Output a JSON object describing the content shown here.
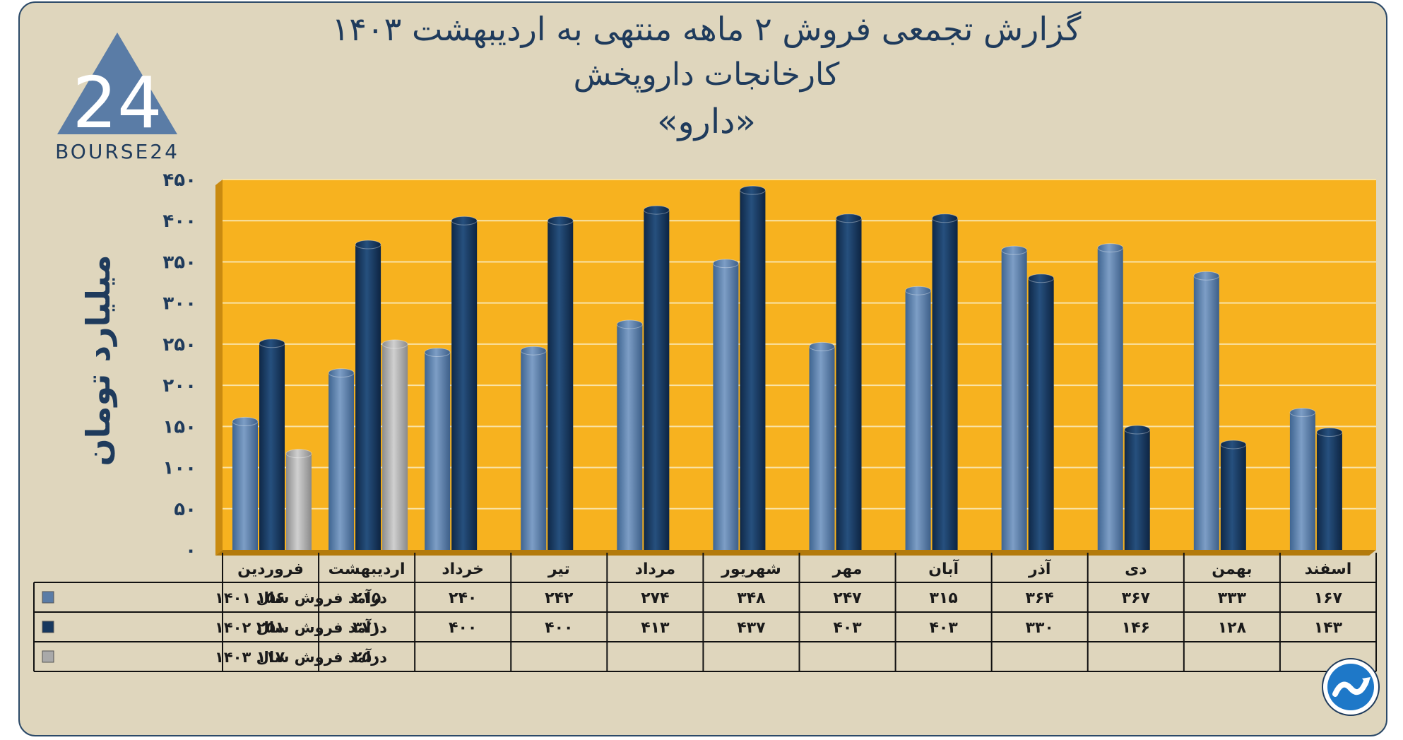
{
  "header": {
    "title_line1": "گزارش تجمعی فروش ۲ ماهه منتهی به اردیبهشت ۱۴۰۳",
    "title_line2": "کارخانجات داروپخش",
    "title_line3": "«دارو»"
  },
  "logo": {
    "text": "BOURSE24",
    "number": "24"
  },
  "colors": {
    "series_1401": "#5a7ca6",
    "series_1402": "#18385e",
    "series_1403": "#a9a9a9",
    "plot_bg": "#f7b21f",
    "text": "#1f3b5c"
  },
  "chart_data": {
    "type": "bar",
    "title": "گزارش تجمعی فروش ۲ ماهه منتهی به اردیبهشت ۱۴۰۳",
    "ylabel": "میلیارد تومان",
    "ylim": [
      0,
      450
    ],
    "yticks": [
      0,
      50,
      100,
      150,
      200,
      250,
      300,
      350,
      400,
      450
    ],
    "ytick_labels": [
      "۰",
      "۵۰",
      "۱۰۰",
      "۱۵۰",
      "۲۰۰",
      "۲۵۰",
      "۳۰۰",
      "۳۵۰",
      "۴۰۰",
      "۴۵۰"
    ],
    "categories": [
      "فروردین",
      "اردیبهشت",
      "خرداد",
      "تیر",
      "مرداد",
      "شهریور",
      "مهر",
      "آبان",
      "آذر",
      "دی",
      "بهمن",
      "اسفند"
    ],
    "series": [
      {
        "name": "درآمد فروش سال ۱۴۰۱",
        "values": [
          156,
          215,
          240,
          242,
          274,
          348,
          247,
          315,
          364,
          367,
          333,
          167
        ],
        "labels": [
          "۱۵۶",
          "۲۱۵",
          "۲۴۰",
          "۲۴۲",
          "۲۷۴",
          "۳۴۸",
          "۲۴۷",
          "۳۱۵",
          "۳۶۴",
          "۳۶۷",
          "۳۳۳",
          "۱۶۷"
        ]
      },
      {
        "name": "درآمد فروش سال ۱۴۰۲",
        "values": [
          251,
          371,
          400,
          400,
          413,
          437,
          403,
          403,
          330,
          146,
          128,
          143
        ],
        "labels": [
          "۲۵۱",
          "۳۷۱",
          "۴۰۰",
          "۴۰۰",
          "۴۱۳",
          "۴۳۷",
          "۴۰۳",
          "۴۰۳",
          "۳۳۰",
          "۱۴۶",
          "۱۲۸",
          "۱۴۳"
        ]
      },
      {
        "name": "درآمد فروش سال ۱۴۰۳",
        "values": [
          117,
          250,
          null,
          null,
          null,
          null,
          null,
          null,
          null,
          null,
          null,
          null
        ],
        "labels": [
          "۱۱۷",
          "۲۵۰",
          "",
          "",
          "",
          "",
          "",
          "",
          "",
          "",
          "",
          ""
        ]
      }
    ],
    "legend": "table-left"
  }
}
